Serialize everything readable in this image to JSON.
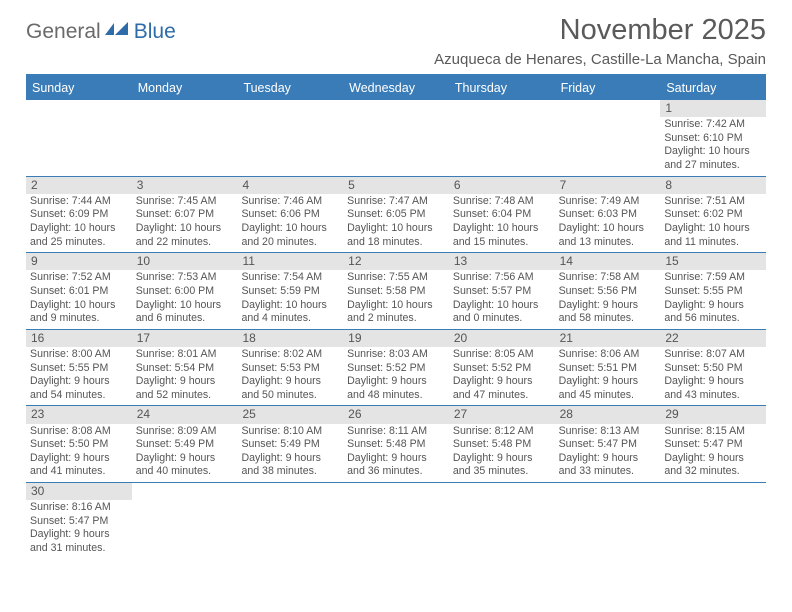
{
  "logo": {
    "part1": "General",
    "part2": "Blue"
  },
  "title": "November 2025",
  "location": "Azuqueca de Henares, Castille-La Mancha, Spain",
  "colors": {
    "accent": "#3a7cb8",
    "header_bg": "#3a7cb8",
    "daynum_bg": "#e4e4e4",
    "text": "#555555",
    "logo_gray": "#6a6a6a",
    "logo_blue": "#2d6ca8"
  },
  "weekdays": [
    "Sunday",
    "Monday",
    "Tuesday",
    "Wednesday",
    "Thursday",
    "Friday",
    "Saturday"
  ],
  "weeks": [
    [
      null,
      null,
      null,
      null,
      null,
      null,
      {
        "n": "1",
        "sr": "Sunrise: 7:42 AM",
        "ss": "Sunset: 6:10 PM",
        "dl": "Daylight: 10 hours and 27 minutes."
      }
    ],
    [
      {
        "n": "2",
        "sr": "Sunrise: 7:44 AM",
        "ss": "Sunset: 6:09 PM",
        "dl": "Daylight: 10 hours and 25 minutes."
      },
      {
        "n": "3",
        "sr": "Sunrise: 7:45 AM",
        "ss": "Sunset: 6:07 PM",
        "dl": "Daylight: 10 hours and 22 minutes."
      },
      {
        "n": "4",
        "sr": "Sunrise: 7:46 AM",
        "ss": "Sunset: 6:06 PM",
        "dl": "Daylight: 10 hours and 20 minutes."
      },
      {
        "n": "5",
        "sr": "Sunrise: 7:47 AM",
        "ss": "Sunset: 6:05 PM",
        "dl": "Daylight: 10 hours and 18 minutes."
      },
      {
        "n": "6",
        "sr": "Sunrise: 7:48 AM",
        "ss": "Sunset: 6:04 PM",
        "dl": "Daylight: 10 hours and 15 minutes."
      },
      {
        "n": "7",
        "sr": "Sunrise: 7:49 AM",
        "ss": "Sunset: 6:03 PM",
        "dl": "Daylight: 10 hours and 13 minutes."
      },
      {
        "n": "8",
        "sr": "Sunrise: 7:51 AM",
        "ss": "Sunset: 6:02 PM",
        "dl": "Daylight: 10 hours and 11 minutes."
      }
    ],
    [
      {
        "n": "9",
        "sr": "Sunrise: 7:52 AM",
        "ss": "Sunset: 6:01 PM",
        "dl": "Daylight: 10 hours and 9 minutes."
      },
      {
        "n": "10",
        "sr": "Sunrise: 7:53 AM",
        "ss": "Sunset: 6:00 PM",
        "dl": "Daylight: 10 hours and 6 minutes."
      },
      {
        "n": "11",
        "sr": "Sunrise: 7:54 AM",
        "ss": "Sunset: 5:59 PM",
        "dl": "Daylight: 10 hours and 4 minutes."
      },
      {
        "n": "12",
        "sr": "Sunrise: 7:55 AM",
        "ss": "Sunset: 5:58 PM",
        "dl": "Daylight: 10 hours and 2 minutes."
      },
      {
        "n": "13",
        "sr": "Sunrise: 7:56 AM",
        "ss": "Sunset: 5:57 PM",
        "dl": "Daylight: 10 hours and 0 minutes."
      },
      {
        "n": "14",
        "sr": "Sunrise: 7:58 AM",
        "ss": "Sunset: 5:56 PM",
        "dl": "Daylight: 9 hours and 58 minutes."
      },
      {
        "n": "15",
        "sr": "Sunrise: 7:59 AM",
        "ss": "Sunset: 5:55 PM",
        "dl": "Daylight: 9 hours and 56 minutes."
      }
    ],
    [
      {
        "n": "16",
        "sr": "Sunrise: 8:00 AM",
        "ss": "Sunset: 5:55 PM",
        "dl": "Daylight: 9 hours and 54 minutes."
      },
      {
        "n": "17",
        "sr": "Sunrise: 8:01 AM",
        "ss": "Sunset: 5:54 PM",
        "dl": "Daylight: 9 hours and 52 minutes."
      },
      {
        "n": "18",
        "sr": "Sunrise: 8:02 AM",
        "ss": "Sunset: 5:53 PM",
        "dl": "Daylight: 9 hours and 50 minutes."
      },
      {
        "n": "19",
        "sr": "Sunrise: 8:03 AM",
        "ss": "Sunset: 5:52 PM",
        "dl": "Daylight: 9 hours and 48 minutes."
      },
      {
        "n": "20",
        "sr": "Sunrise: 8:05 AM",
        "ss": "Sunset: 5:52 PM",
        "dl": "Daylight: 9 hours and 47 minutes."
      },
      {
        "n": "21",
        "sr": "Sunrise: 8:06 AM",
        "ss": "Sunset: 5:51 PM",
        "dl": "Daylight: 9 hours and 45 minutes."
      },
      {
        "n": "22",
        "sr": "Sunrise: 8:07 AM",
        "ss": "Sunset: 5:50 PM",
        "dl": "Daylight: 9 hours and 43 minutes."
      }
    ],
    [
      {
        "n": "23",
        "sr": "Sunrise: 8:08 AM",
        "ss": "Sunset: 5:50 PM",
        "dl": "Daylight: 9 hours and 41 minutes."
      },
      {
        "n": "24",
        "sr": "Sunrise: 8:09 AM",
        "ss": "Sunset: 5:49 PM",
        "dl": "Daylight: 9 hours and 40 minutes."
      },
      {
        "n": "25",
        "sr": "Sunrise: 8:10 AM",
        "ss": "Sunset: 5:49 PM",
        "dl": "Daylight: 9 hours and 38 minutes."
      },
      {
        "n": "26",
        "sr": "Sunrise: 8:11 AM",
        "ss": "Sunset: 5:48 PM",
        "dl": "Daylight: 9 hours and 36 minutes."
      },
      {
        "n": "27",
        "sr": "Sunrise: 8:12 AM",
        "ss": "Sunset: 5:48 PM",
        "dl": "Daylight: 9 hours and 35 minutes."
      },
      {
        "n": "28",
        "sr": "Sunrise: 8:13 AM",
        "ss": "Sunset: 5:47 PM",
        "dl": "Daylight: 9 hours and 33 minutes."
      },
      {
        "n": "29",
        "sr": "Sunrise: 8:15 AM",
        "ss": "Sunset: 5:47 PM",
        "dl": "Daylight: 9 hours and 32 minutes."
      }
    ],
    [
      {
        "n": "30",
        "sr": "Sunrise: 8:16 AM",
        "ss": "Sunset: 5:47 PM",
        "dl": "Daylight: 9 hours and 31 minutes."
      },
      null,
      null,
      null,
      null,
      null,
      null
    ]
  ]
}
